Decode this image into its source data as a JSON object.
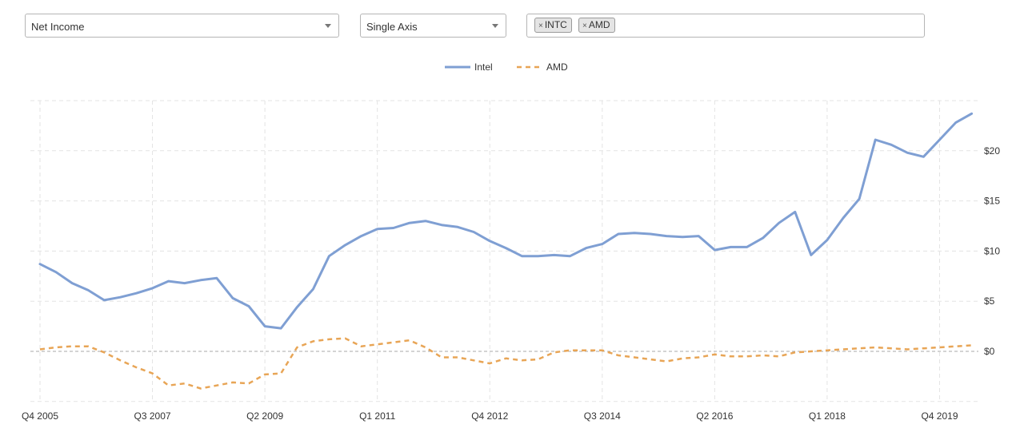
{
  "controls": {
    "metric": "Net Income",
    "axis_mode": "Single Axis",
    "tickers": [
      "INTC",
      "AMD"
    ],
    "tag_remove_glyph": "×"
  },
  "chart_data": {
    "type": "line",
    "legend_position": "top-center",
    "grid": true,
    "x_ticks": [
      "Q4 2005",
      "Q3 2007",
      "Q2 2009",
      "Q1 2011",
      "Q4 2012",
      "Q3 2014",
      "Q2 2016",
      "Q1 2018",
      "Q4 2019"
    ],
    "x_tick_indices": [
      0,
      7,
      14,
      21,
      28,
      35,
      42,
      49,
      56
    ],
    "y_ticks": [
      0,
      5,
      10,
      15,
      20
    ],
    "y_tick_labels": [
      "$0",
      "$5",
      "$10",
      "$15",
      "$20"
    ],
    "ylim": [
      -5,
      25
    ],
    "series": [
      {
        "name": "Intel",
        "color": "#7f9fd3",
        "dash": "solid",
        "values": [
          8.7,
          7.9,
          6.8,
          6.1,
          5.1,
          5.4,
          5.8,
          6.3,
          7.0,
          6.8,
          7.1,
          7.3,
          5.3,
          4.5,
          2.5,
          2.3,
          4.4,
          6.2,
          9.5,
          10.6,
          11.5,
          12.2,
          12.3,
          12.8,
          13.0,
          12.6,
          12.4,
          11.9,
          11.0,
          10.3,
          9.5,
          9.5,
          9.6,
          9.5,
          10.3,
          10.7,
          11.7,
          11.8,
          11.7,
          11.5,
          11.4,
          11.5,
          10.1,
          10.4,
          10.4,
          11.3,
          12.8,
          13.9,
          9.6,
          11.1,
          13.3,
          15.2,
          21.1,
          20.6,
          19.8,
          19.4,
          21.1,
          22.8,
          23.7
        ]
      },
      {
        "name": "AMD",
        "color": "#e8a556",
        "dash": "dashed",
        "values": [
          0.2,
          0.4,
          0.5,
          0.5,
          -0.1,
          -0.9,
          -1.6,
          -2.2,
          -3.4,
          -3.2,
          -3.7,
          -3.4,
          -3.1,
          -3.2,
          -2.3,
          -2.2,
          0.4,
          1.0,
          1.2,
          1.3,
          0.5,
          0.7,
          0.9,
          1.1,
          0.4,
          -0.6,
          -0.6,
          -0.9,
          -1.2,
          -0.7,
          -0.9,
          -0.8,
          -0.1,
          0.1,
          0.1,
          0.1,
          -0.4,
          -0.6,
          -0.8,
          -1.0,
          -0.7,
          -0.6,
          -0.3,
          -0.5,
          -0.5,
          -0.4,
          -0.5,
          -0.1,
          0.0,
          0.1,
          0.2,
          0.3,
          0.4,
          0.3,
          0.2,
          0.3,
          0.4,
          0.5,
          0.6
        ]
      }
    ]
  }
}
